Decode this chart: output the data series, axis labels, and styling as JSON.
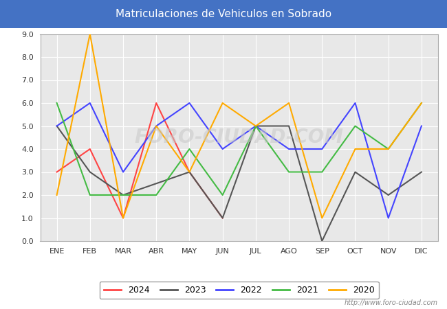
{
  "title": "Matriculaciones de Vehiculos en Sobrado",
  "title_bg_color": "#4472c4",
  "title_text_color": "#ffffff",
  "x_labels": [
    "ENE",
    "FEB",
    "MAR",
    "ABR",
    "MAY",
    "JUN",
    "JUL",
    "AGO",
    "SEP",
    "OCT",
    "NOV",
    "DIC"
  ],
  "ylim": [
    0.0,
    9.0
  ],
  "yticks": [
    0.0,
    1.0,
    2.0,
    3.0,
    4.0,
    5.0,
    6.0,
    7.0,
    8.0,
    9.0
  ],
  "series": {
    "2024": {
      "color": "#ff4444",
      "data": [
        3.0,
        4.0,
        1.0,
        6.0,
        3.0,
        1.0,
        null,
        null,
        null,
        null,
        null,
        null
      ]
    },
    "2023": {
      "color": "#555555",
      "data": [
        5.0,
        3.0,
        2.0,
        2.5,
        3.0,
        1.0,
        5.0,
        5.0,
        0.0,
        3.0,
        2.0,
        3.0
      ]
    },
    "2022": {
      "color": "#4444ff",
      "data": [
        5.0,
        6.0,
        3.0,
        5.0,
        6.0,
        4.0,
        5.0,
        4.0,
        4.0,
        6.0,
        1.0,
        5.0
      ]
    },
    "2021": {
      "color": "#44bb44",
      "data": [
        6.0,
        2.0,
        2.0,
        2.0,
        4.0,
        2.0,
        5.0,
        3.0,
        3.0,
        5.0,
        4.0,
        6.0
      ]
    },
    "2020": {
      "color": "#ffaa00",
      "data": [
        2.0,
        9.0,
        1.0,
        5.0,
        3.0,
        6.0,
        5.0,
        6.0,
        1.0,
        4.0,
        4.0,
        6.0
      ]
    }
  },
  "legend_order": [
    "2024",
    "2023",
    "2022",
    "2021",
    "2020"
  ],
  "plot_bg_color": "#e8e8e8",
  "grid_color": "#ffffff",
  "fig_bg_color": "#ffffff",
  "watermark_chart": "foro-ciudad.com",
  "watermark_bottom": "http://www.foro-ciudad.com",
  "figsize": [
    6.5,
    4.5
  ],
  "dpi": 100
}
